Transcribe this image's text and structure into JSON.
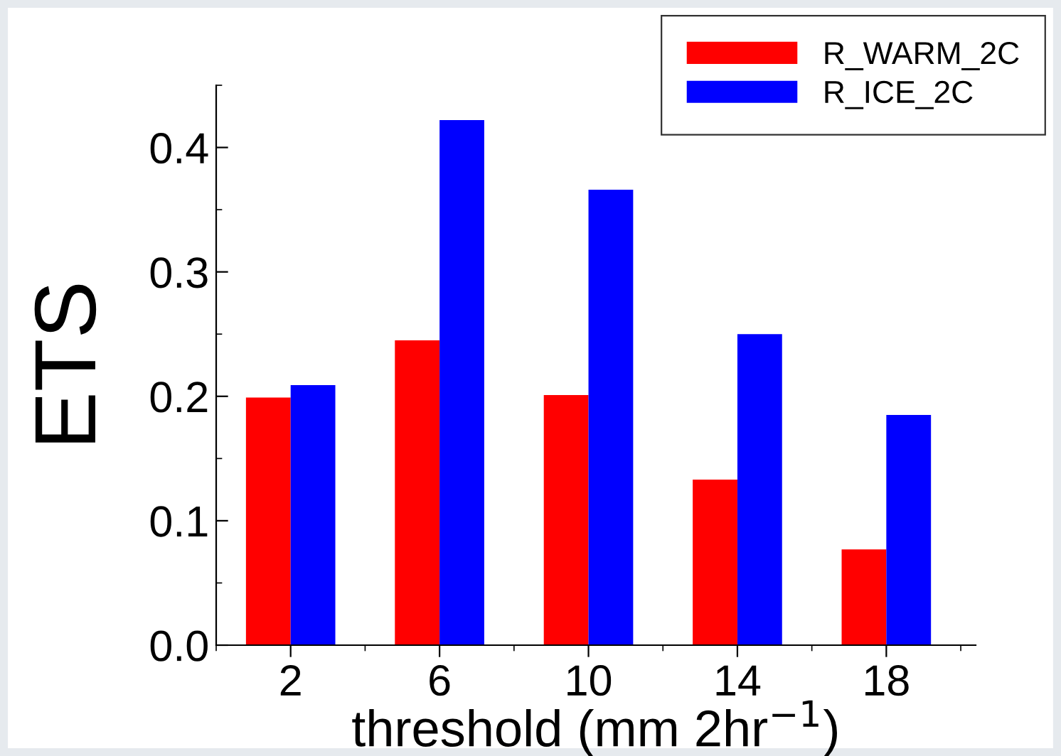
{
  "chart_data": {
    "type": "bar",
    "xlabel": "threshold (mm 2hr$^{−1}$)",
    "ylabel": "ETS",
    "categories": [
      "2",
      "6",
      "10",
      "14",
      "18"
    ],
    "series": [
      {
        "name": "R_WARM_2C",
        "color": "#ff0000",
        "values": [
          0.199,
          0.245,
          0.201,
          0.133,
          0.077
        ]
      },
      {
        "name": "R_ICE_2C",
        "color": "#0000ff",
        "values": [
          0.209,
          0.422,
          0.366,
          0.25,
          0.185
        ]
      }
    ],
    "ylim": [
      0,
      0.45
    ],
    "yticks": [
      {
        "value": 0,
        "label": "0.0"
      },
      0.1,
      0.2,
      0.3,
      0.4
    ],
    "grid": false,
    "legend": "top right"
  }
}
